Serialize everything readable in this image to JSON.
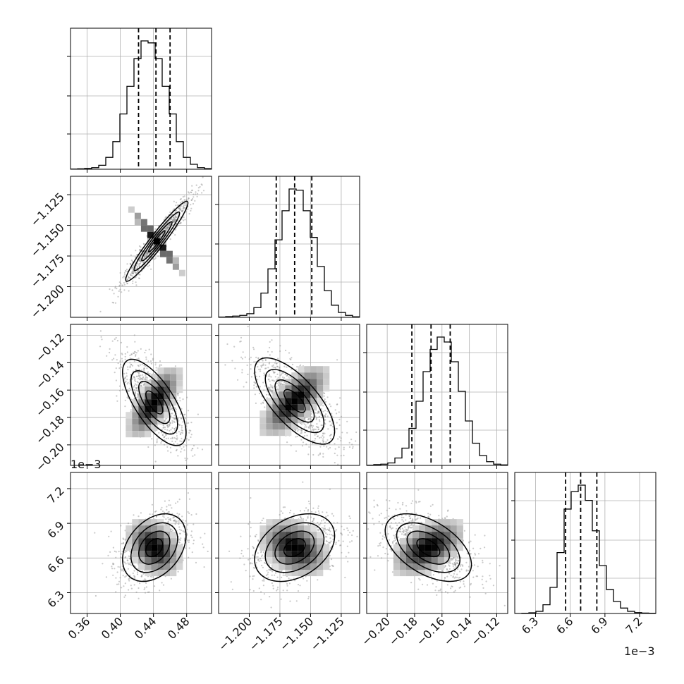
{
  "chart_data": {
    "type": "corner",
    "title": "",
    "grid": true,
    "parameters": [
      {
        "range": [
          0.34,
          0.51
        ],
        "ticks": [
          0.36,
          0.4,
          0.44,
          0.48
        ],
        "tick_labels": [
          "0.36",
          "0.40",
          "0.44",
          "0.48"
        ],
        "quantiles": [
          0.422,
          0.443,
          0.46
        ],
        "hist_edges": [
          0.34,
          0.51
        ],
        "hist_counts": [
          1,
          2,
          4,
          8,
          20,
          60,
          140,
          280,
          420,
          560,
          650,
          640,
          560,
          420,
          280,
          140,
          60,
          25,
          8,
          3
        ]
      },
      {
        "range": [
          -1.225,
          -1.11
        ],
        "ticks": [
          -1.2,
          -1.175,
          -1.15,
          -1.125
        ],
        "tick_labels": [
          "−1.200",
          "−1.175",
          "−1.150",
          "−1.125"
        ],
        "quantiles": [
          -1.178,
          -1.163,
          -1.149
        ],
        "hist_edges": [
          -1.225,
          -1.11
        ],
        "hist_counts": [
          1,
          3,
          5,
          8,
          15,
          40,
          100,
          200,
          320,
          440,
          530,
          525,
          440,
          330,
          210,
          110,
          50,
          20,
          8,
          2
        ]
      },
      {
        "range": [
          -0.215,
          -0.112
        ],
        "ticks": [
          -0.2,
          -0.18,
          -0.16,
          -0.14,
          -0.12
        ],
        "tick_labels": [
          "−0.20",
          "−0.18",
          "−0.16",
          "−0.14",
          "−0.12"
        ],
        "quantiles": [
          -0.182,
          -0.168,
          -0.154
        ],
        "hist_edges": [
          -0.215,
          -0.112
        ],
        "hist_counts": [
          1,
          3,
          5,
          10,
          30,
          70,
          150,
          260,
          380,
          470,
          520,
          500,
          420,
          300,
          180,
          90,
          40,
          15,
          5,
          2
        ]
      },
      {
        "range": [
          6.12,
          7.34
        ],
        "ticks": [
          6.3,
          6.6,
          6.9,
          7.2
        ],
        "tick_labels": [
          "6.3",
          "6.6",
          "6.9",
          "7.2"
        ],
        "quantiles": [
          6.56,
          6.69,
          6.83
        ],
        "offset_label": "1e−3",
        "hist_edges": [
          6.12,
          7.34
        ],
        "hist_counts": [
          0,
          1,
          3,
          10,
          40,
          120,
          280,
          480,
          560,
          590,
          520,
          380,
          220,
          110,
          55,
          25,
          10,
          4,
          2,
          1
        ]
      }
    ],
    "pairs": [
      {
        "x": 0,
        "y": 1,
        "center": [
          0.444,
          -1.163
        ],
        "sd": [
          0.0167,
          0.0145
        ],
        "corr": 0.96
      },
      {
        "x": 0,
        "y": 2,
        "center": [
          0.441,
          -0.169
        ],
        "sd": [
          0.017,
          0.014
        ],
        "corr": -0.7
      },
      {
        "x": 1,
        "y": 2,
        "center": [
          -1.163,
          -0.168
        ],
        "sd": [
          0.0145,
          0.014
        ],
        "corr": -0.7
      },
      {
        "x": 0,
        "y": 3,
        "center": [
          0.441,
          6.69
        ],
        "sd": [
          0.017,
          0.13
        ],
        "corr": 0.35
      },
      {
        "x": 1,
        "y": 3,
        "center": [
          -1.163,
          6.69
        ],
        "sd": [
          0.0145,
          0.13
        ],
        "corr": 0.35
      },
      {
        "x": 2,
        "y": 3,
        "center": [
          -0.17,
          6.69
        ],
        "sd": [
          0.014,
          0.13
        ],
        "corr": -0.5
      }
    ],
    "offset_labels": [
      {
        "row": 3,
        "text": "1e−3"
      }
    ],
    "colors": {
      "line": "#000000",
      "grid": "#b0b0b0",
      "points": "#8a8a8a",
      "dashes": "#000000"
    }
  }
}
